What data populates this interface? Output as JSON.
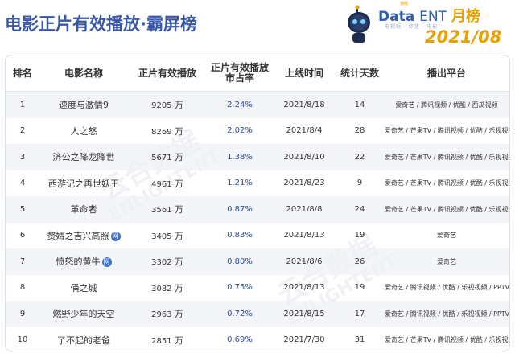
{
  "header": {
    "title": "电影正片有效播放·霸屏榜",
    "brand_data": "Data",
    "brand_ent": "ENT",
    "brand_month": "月榜",
    "brand_badge": "猫眼",
    "brand_sub": "电视剧 · 综艺 · 电影",
    "date": "2021/08"
  },
  "watermark": {
    "text_cn": "云合数据",
    "text_en": "ENLIGHTENT"
  },
  "table": {
    "columns": [
      "排名",
      "电影名称",
      "正片有效播放",
      "正片有效播放市占率",
      "上线时间",
      "统计天数",
      "播出平台"
    ],
    "share_header_line1": "正片有效播放",
    "share_header_line2": "市占率",
    "unit": "万",
    "net_badge": "网",
    "rows": [
      {
        "rank": "1",
        "name": "速度与激情9",
        "net": false,
        "plays": "9205",
        "share": "2.24%",
        "date": "2021/8/18",
        "days": "14",
        "platform": "爱奇艺 / 腾讯视频 / 优酷 / 西瓜视频"
      },
      {
        "rank": "2",
        "name": "人之怒",
        "net": false,
        "plays": "8269",
        "share": "2.02%",
        "date": "2021/8/4",
        "days": "28",
        "platform": "爱奇艺 / 芒果TV / 腾讯视频 / 优酷 / 乐视视频 / PPTV"
      },
      {
        "rank": "3",
        "name": "济公之降龙降世",
        "net": false,
        "plays": "5671",
        "share": "1.38%",
        "date": "2021/8/10",
        "days": "22",
        "platform": "爱奇艺 / 芒果TV / 腾讯视频 / 优酷 / 乐视视频 / PPTV"
      },
      {
        "rank": "4",
        "name": "西游记之再世妖王",
        "net": false,
        "plays": "4961",
        "share": "1.21%",
        "date": "2021/8/23",
        "days": "9",
        "platform": "爱奇艺 / 芒果TV / 腾讯视频 / 优酷 / 乐视视频 / PPTV"
      },
      {
        "rank": "5",
        "name": "革命者",
        "net": false,
        "plays": "3561",
        "share": "0.87%",
        "date": "2021/8/8",
        "days": "24",
        "platform": "爱奇艺 / 芒果TV / 腾讯视频 / 优酷 / 乐视视频 / PPTV"
      },
      {
        "rank": "6",
        "name": "赘婿之吉兴高照",
        "net": true,
        "plays": "3405",
        "share": "0.83%",
        "date": "2021/8/13",
        "days": "19",
        "platform": "爱奇艺"
      },
      {
        "rank": "7",
        "name": "愤怒的黄牛",
        "net": true,
        "plays": "3302",
        "share": "0.80%",
        "date": "2021/8/6",
        "days": "26",
        "platform": "爱奇艺"
      },
      {
        "rank": "8",
        "name": "俑之城",
        "net": false,
        "plays": "3082",
        "share": "0.75%",
        "date": "2021/8/13",
        "days": "19",
        "platform": "爱奇艺 / 腾讯视频 / 优酷 / 乐视视频 / PPTV"
      },
      {
        "rank": "9",
        "name": "燃野少年的天空",
        "net": false,
        "plays": "2963",
        "share": "0.72%",
        "date": "2021/8/15",
        "days": "17",
        "platform": "爱奇艺 / 腾讯视频 / 优酷 / 乐视视频 / PPTV"
      },
      {
        "rank": "10",
        "name": "了不起的老爸",
        "net": false,
        "plays": "2851",
        "share": "0.69%",
        "date": "2021/7/30",
        "days": "31",
        "platform": "爱奇艺 / 芒果TV / 腾讯视频 / 优酷 / 乐视视频 / PPTV"
      }
    ]
  }
}
